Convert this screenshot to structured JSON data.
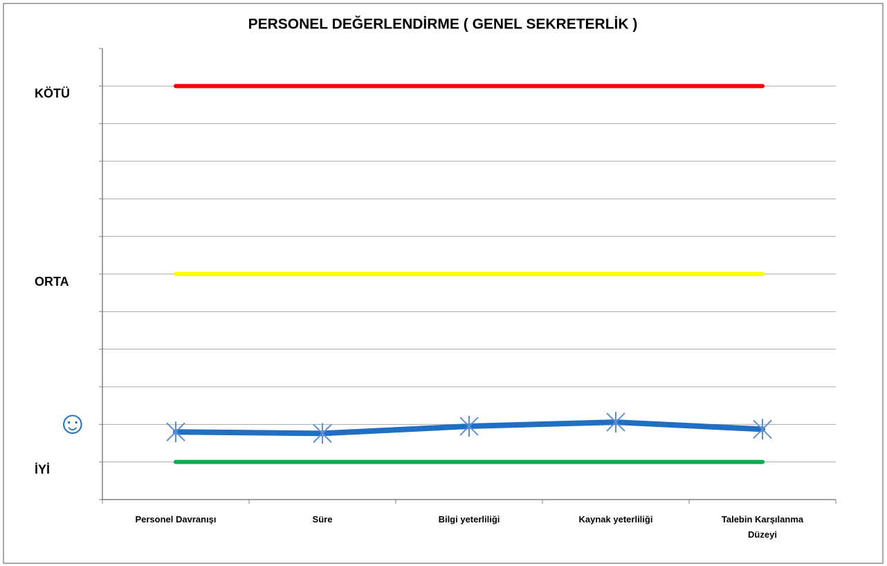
{
  "chart_data": {
    "type": "line",
    "title": "PERSONEL DEĞERLENDİRME ( GENEL SEKRETERLİK )",
    "categories": [
      "Personel Davranışı",
      "Süre",
      "Bilgi yeterliliği",
      "Kaynak yeterliliği",
      "Talebin Karşılanma Düzeyi"
    ],
    "series": [
      {
        "color": "#ff0000",
        "values": [
          11,
          11,
          11,
          11,
          11
        ]
      },
      {
        "color": "#ffff00",
        "values": [
          6,
          6,
          6,
          6,
          6
        ]
      },
      {
        "color": "#00b050",
        "values": [
          1,
          1,
          1,
          1,
          1
        ]
      },
      {
        "color": "#1f6fc5",
        "values": [
          1.8,
          1.76,
          1.95,
          2.06,
          1.87
        ],
        "marker": "star"
      }
    ],
    "ylim": [
      0,
      12
    ],
    "yticks": [
      {
        "value": 1,
        "label": "İYİ"
      },
      {
        "value": 2,
        "label": "☺"
      },
      {
        "value": 6,
        "label": "ORTA"
      },
      {
        "value": 11,
        "label": "KÖTÜ"
      }
    ],
    "grid": true,
    "grid_step": 1
  }
}
